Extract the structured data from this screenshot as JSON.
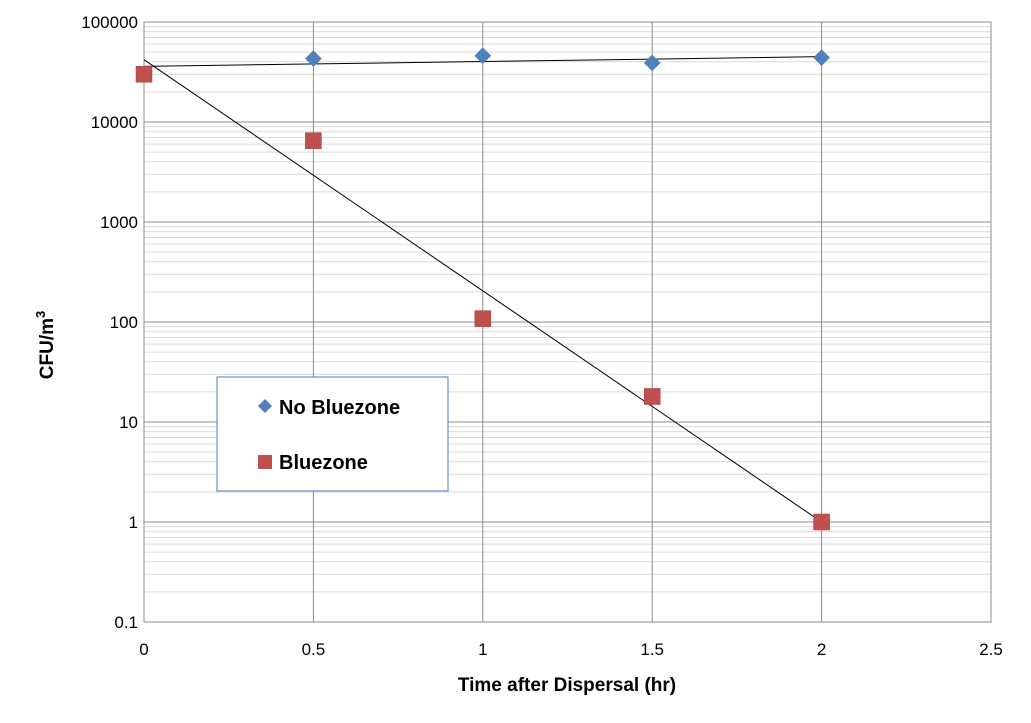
{
  "chart_data": {
    "type": "scatter",
    "title": "",
    "xlabel": "Time after Dispersal (hr)",
    "ylabel_main": "CFU/m",
    "ylabel_sup": "3",
    "xlim": [
      0,
      2.5
    ],
    "ylim": [
      0.1,
      100000
    ],
    "yscale": "log",
    "x_ticks": [
      0,
      0.5,
      1,
      1.5,
      2,
      2.5
    ],
    "x_tick_labels": [
      "0",
      "0.5",
      "1",
      "1.5",
      "2",
      "2.5"
    ],
    "y_ticks": [
      0.1,
      1,
      10,
      100,
      1000,
      10000,
      100000
    ],
    "y_tick_labels": [
      "0.1",
      "1",
      "10",
      "100",
      "1000",
      "10000",
      "100000"
    ],
    "grid": true,
    "legend_position": "lower-left",
    "series": [
      {
        "name": "No Bluezone",
        "marker": "diamond",
        "color": "#4F81BD",
        "x": [
          0.5,
          1,
          1.5,
          2
        ],
        "y": [
          43000,
          46000,
          39000,
          44000
        ],
        "trendline": {
          "type": "exponential",
          "x": [
            0,
            2
          ],
          "y": [
            36000,
            45000
          ]
        }
      },
      {
        "name": "Bluezone",
        "marker": "square",
        "color": "#C0504D",
        "x": [
          0,
          0.5,
          1,
          1.5,
          2
        ],
        "y": [
          30000,
          6500,
          108,
          18,
          1
        ],
        "trendline": {
          "type": "exponential",
          "x": [
            0,
            2
          ],
          "y": [
            42000,
            1
          ]
        }
      }
    ]
  }
}
